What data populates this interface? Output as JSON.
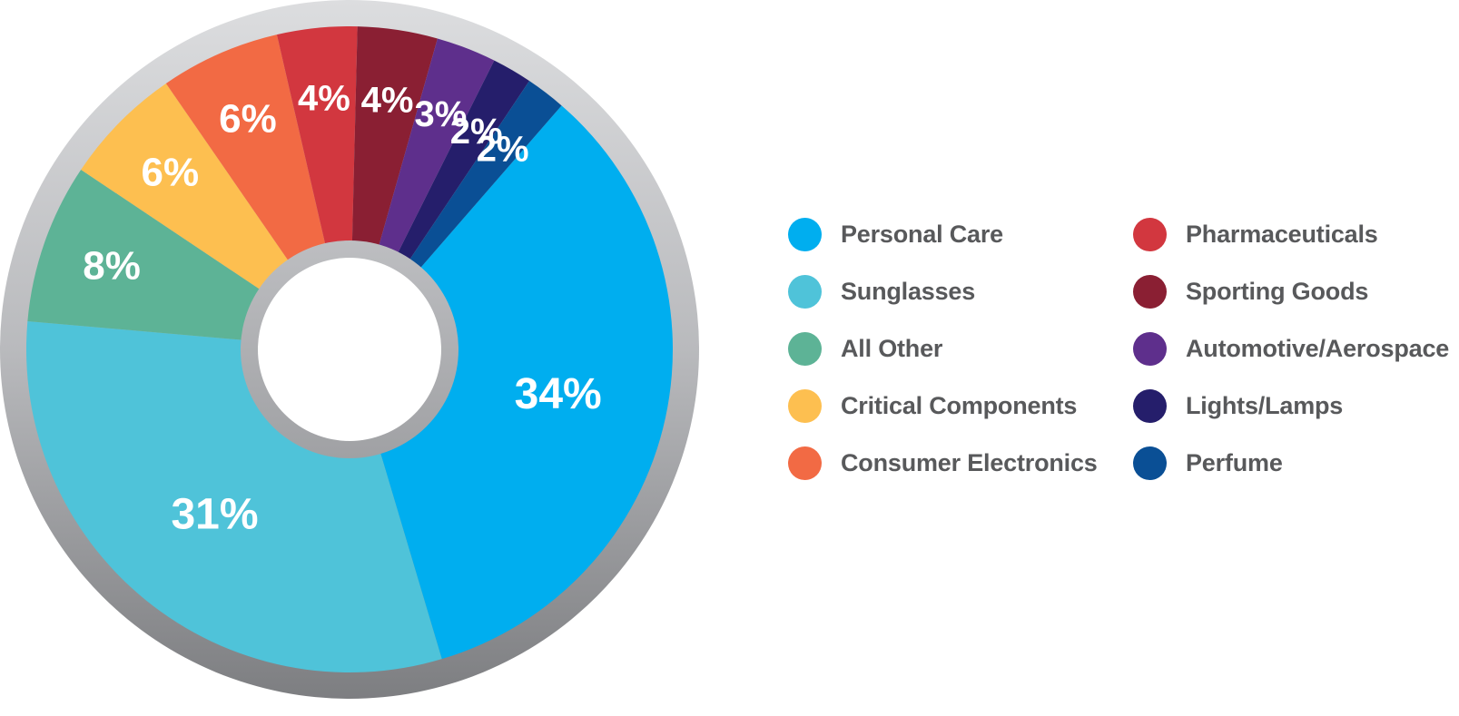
{
  "chart_data": {
    "type": "pie",
    "variant": "donut",
    "categories": [
      "Personal Care",
      "Sunglasses",
      "All Other",
      "Critical Components",
      "Consumer Electronics",
      "Pharmaceuticals",
      "Sporting Goods",
      "Automotive/Aerospace",
      "Lights/Lamps",
      "Perfume"
    ],
    "values": [
      34,
      31,
      8,
      6,
      6,
      4,
      4,
      3,
      2,
      2
    ],
    "value_labels": [
      "34%",
      "31%",
      "8%",
      "6%",
      "6%",
      "4%",
      "4%",
      "3%",
      "2%",
      "2%"
    ],
    "colors": [
      "#00aeef",
      "#4fc3d9",
      "#5db396",
      "#fdbf50",
      "#f26a44",
      "#d2373f",
      "#8a1f33",
      "#5e2f8c",
      "#251e6b",
      "#0a4f95"
    ],
    "legend": {
      "placement": "right",
      "columns": 2
    },
    "ring_color": "#a7a9ac",
    "title": "",
    "xlabel": "",
    "ylabel": ""
  }
}
